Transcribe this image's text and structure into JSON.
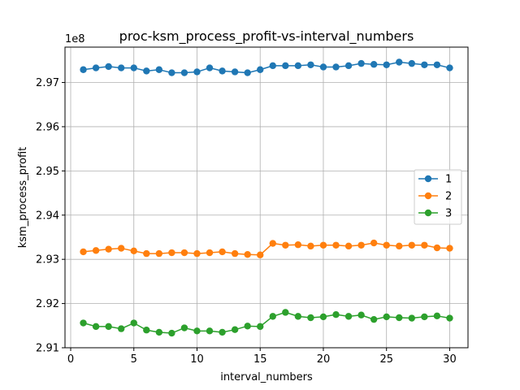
{
  "chart_data": {
    "type": "line",
    "title": "proc-ksm_process_profit-vs-interval_numbers",
    "xlabel": "interval_numbers",
    "ylabel": "ksm_process_profit",
    "offset_label": "1e8",
    "xlim": [
      -0.45,
      31.45
    ],
    "ylim": [
      2.91,
      2.978
    ],
    "x_ticks": [
      0,
      5,
      10,
      15,
      20,
      25,
      30
    ],
    "y_ticks": [
      2.91,
      2.92,
      2.93,
      2.94,
      2.95,
      2.96,
      2.97
    ],
    "y_tick_labels": [
      "2.91",
      "2.92",
      "2.93",
      "2.94",
      "2.95",
      "2.96",
      "2.97"
    ],
    "grid": true,
    "legend_position": "center-right",
    "x": [
      1,
      2,
      3,
      4,
      5,
      6,
      7,
      8,
      9,
      10,
      11,
      12,
      13,
      14,
      15,
      16,
      17,
      18,
      19,
      20,
      21,
      22,
      23,
      24,
      25,
      26,
      27,
      28,
      29,
      30
    ],
    "series": [
      {
        "name": "1",
        "color": "#1f77b4",
        "values": [
          2.9729,
          2.9733,
          2.9736,
          2.9733,
          2.9733,
          2.9726,
          2.9729,
          2.9722,
          2.9722,
          2.9724,
          2.9733,
          2.9726,
          2.9724,
          2.9722,
          2.9729,
          2.9738,
          2.9738,
          2.9738,
          2.974,
          2.9735,
          2.9735,
          2.9738,
          2.9743,
          2.9741,
          2.974,
          2.9746,
          2.9743,
          2.974,
          2.974,
          2.9733
        ]
      },
      {
        "name": "2",
        "color": "#ff7f0e",
        "values": [
          2.9317,
          2.932,
          2.9323,
          2.9325,
          2.9319,
          2.9313,
          2.9313,
          2.9315,
          2.9315,
          2.9313,
          2.9315,
          2.9317,
          2.9313,
          2.9311,
          2.931,
          2.9336,
          2.9332,
          2.9333,
          2.933,
          2.9332,
          2.9332,
          2.933,
          2.9332,
          2.9337,
          2.9332,
          2.933,
          2.9332,
          2.9332,
          2.9326,
          2.9325
        ]
      },
      {
        "name": "3",
        "color": "#2ca02c",
        "values": [
          2.9156,
          2.9148,
          2.9148,
          2.9143,
          2.9156,
          2.914,
          2.9135,
          2.9133,
          2.9145,
          2.9138,
          2.9138,
          2.9135,
          2.9141,
          2.9149,
          2.9148,
          2.9171,
          2.918,
          2.9171,
          2.9168,
          2.917,
          2.9175,
          2.9171,
          2.9174,
          2.9164,
          2.917,
          2.9168,
          2.9167,
          2.917,
          2.9172,
          2.9167
        ]
      }
    ]
  }
}
